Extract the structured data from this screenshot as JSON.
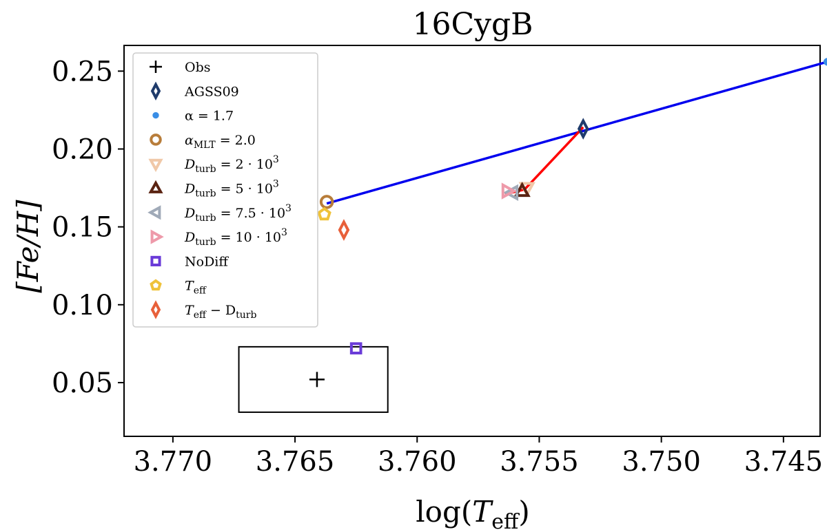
{
  "chart_data": {
    "type": "scatter",
    "title": "16CygB",
    "xlabel": {
      "main": "log(",
      "var": "T",
      "sub": "eff",
      "close": ")"
    },
    "ylabel": "[Fe/H]",
    "xlim": [
      3.772,
      3.7435
    ],
    "ylim": [
      0.0155,
      0.2665
    ],
    "x_ticks": [
      3.77,
      3.765,
      3.76,
      3.755,
      3.75,
      3.745
    ],
    "x_tick_labels": [
      "3.770",
      "3.765",
      "3.760",
      "3.755",
      "3.750",
      "3.745"
    ],
    "y_ticks": [
      0.05,
      0.1,
      0.15,
      0.2,
      0.25
    ],
    "y_tick_labels": [
      "0.05",
      "0.10",
      "0.15",
      "0.20",
      "0.25"
    ],
    "grid": false,
    "legend_position": "top-left",
    "obs_box": {
      "x0": 3.7673,
      "x1": 3.7612,
      "y0": 0.031,
      "y1": 0.073
    },
    "lines": [
      {
        "color": "#0000ee",
        "points": [
          [
            3.7637,
            0.165
          ],
          [
            3.7432,
            0.256
          ]
        ]
      },
      {
        "color": "#ff0000",
        "points": [
          [
            3.7564,
            0.171
          ],
          [
            3.7556,
            0.174
          ],
          [
            3.7532,
            0.214
          ]
        ]
      }
    ],
    "series": [
      {
        "name": "Obs",
        "marker": "plus",
        "color": "#000000",
        "points": [
          [
            3.7641,
            0.052
          ]
        ]
      },
      {
        "name": "AGSS09",
        "marker": "thin-diamond",
        "color": "#1f3b6b",
        "points": [
          [
            3.7532,
            0.213
          ]
        ]
      },
      {
        "name": "α = 1.7",
        "marker": "dot",
        "color": "#3a8ee6",
        "points": [
          [
            3.7432,
            0.256
          ]
        ]
      },
      {
        "name": "α_MLT = 2.0",
        "marker": "circle",
        "color": "#b87d3a",
        "points": [
          [
            3.7637,
            0.166
          ]
        ]
      },
      {
        "name": "D_turb = 2·10³",
        "marker": "triangle-down",
        "color": "#f0c8a8",
        "points": [
          [
            3.7555,
            0.175
          ]
        ]
      },
      {
        "name": "D_turb = 5·10³",
        "marker": "triangle-up",
        "color": "#5a2312",
        "points": [
          [
            3.7557,
            0.173
          ]
        ]
      },
      {
        "name": "D_turb = 7.5·10³",
        "marker": "triangle-left",
        "color": "#a0aab8",
        "points": [
          [
            3.7561,
            0.172
          ]
        ]
      },
      {
        "name": "D_turb = 10·10³",
        "marker": "triangle-right",
        "color": "#ee9aaa",
        "points": [
          [
            3.7563,
            0.173
          ]
        ]
      },
      {
        "name": "NoDiff",
        "marker": "square",
        "color": "#6a3bd8",
        "points": [
          [
            3.7625,
            0.072
          ]
        ]
      },
      {
        "name": "T_eff",
        "marker": "pentagon",
        "color": "#efc23a",
        "points": [
          [
            3.7638,
            0.158
          ]
        ]
      },
      {
        "name": "T_eff − D_turb",
        "marker": "thin-diamond",
        "color": "#e8603a",
        "points": [
          [
            3.763,
            0.148
          ]
        ]
      }
    ],
    "legend": [
      {
        "base": "Obs",
        "sub": "",
        "rest": ""
      },
      {
        "base": "AGSS09",
        "sub": "",
        "rest": ""
      },
      {
        "base": "α = 1.7",
        "sub": "",
        "rest": ""
      },
      {
        "base": "α",
        "sub": "MLT",
        "rest": " = 2.0"
      },
      {
        "base": "D",
        "sub": "turb",
        "rest": " = 2 · 10",
        "sup": "3"
      },
      {
        "base": "D",
        "sub": "turb",
        "rest": " = 5 · 10",
        "sup": "3"
      },
      {
        "base": "D",
        "sub": "turb",
        "rest": " = 7.5 · 10",
        "sup": "3"
      },
      {
        "base": "D",
        "sub": "turb",
        "rest": " = 10 · 10",
        "sup": "3"
      },
      {
        "base": "NoDiff",
        "sub": "",
        "rest": ""
      },
      {
        "base": "T",
        "sub": "eff",
        "rest": ""
      },
      {
        "base": "T",
        "sub": "eff",
        "rest": " − D",
        "sub2": "turb"
      }
    ]
  }
}
